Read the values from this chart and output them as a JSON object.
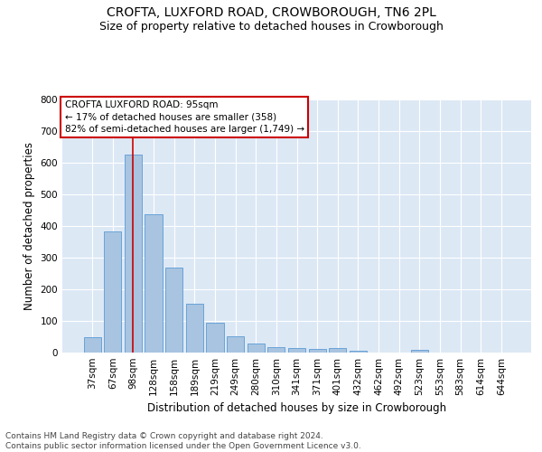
{
  "title": "CROFTA, LUXFORD ROAD, CROWBOROUGH, TN6 2PL",
  "subtitle": "Size of property relative to detached houses in Crowborough",
  "xlabel": "Distribution of detached houses by size in Crowborough",
  "ylabel": "Number of detached properties",
  "categories": [
    "37sqm",
    "67sqm",
    "98sqm",
    "128sqm",
    "158sqm",
    "189sqm",
    "219sqm",
    "249sqm",
    "280sqm",
    "310sqm",
    "341sqm",
    "371sqm",
    "401sqm",
    "432sqm",
    "462sqm",
    "492sqm",
    "523sqm",
    "553sqm",
    "583sqm",
    "614sqm",
    "644sqm"
  ],
  "values": [
    48,
    383,
    625,
    438,
    268,
    153,
    95,
    52,
    28,
    18,
    13,
    11,
    15,
    7,
    0,
    0,
    8,
    0,
    0,
    0,
    0
  ],
  "bar_color": "#a8c4e0",
  "bar_edge_color": "#5b9bd5",
  "background_color": "#dde8f5",
  "grid_color": "#ffffff",
  "vline_x": 2,
  "vline_color": "#cc0000",
  "annotation_text": "CROFTA LUXFORD ROAD: 95sqm\n← 17% of detached houses are smaller (358)\n82% of semi-detached houses are larger (1,749) →",
  "annotation_box_color": "#cc0000",
  "ylim": [
    0,
    800
  ],
  "yticks": [
    0,
    100,
    200,
    300,
    400,
    500,
    600,
    700,
    800
  ],
  "footer_text": "Contains HM Land Registry data © Crown copyright and database right 2024.\nContains public sector information licensed under the Open Government Licence v3.0.",
  "title_fontsize": 10,
  "subtitle_fontsize": 9,
  "axis_label_fontsize": 8.5,
  "tick_fontsize": 7.5,
  "annotation_fontsize": 7.5,
  "footer_fontsize": 6.5
}
